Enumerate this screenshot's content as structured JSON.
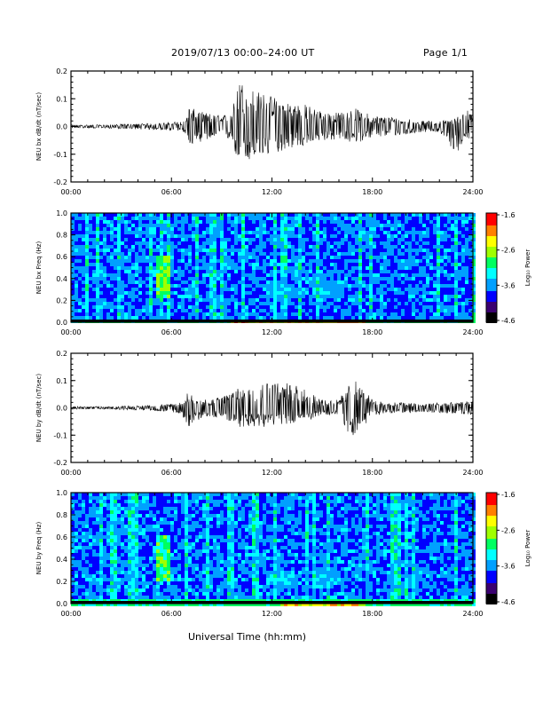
{
  "header": {
    "title": "2019/07/13  00:00–24:00 UT",
    "page": "Page 1/1"
  },
  "footer": {
    "xlabel": "Universal Time (hh:mm)"
  },
  "colors": {
    "trace": "#000000",
    "colormap": [
      "#000000",
      "#3a0070",
      "#0000ff",
      "#00a0ff",
      "#00ffff",
      "#00ff60",
      "#a0ff00",
      "#ffff00",
      "#ff8000",
      "#ff0000"
    ]
  },
  "chart_data": [
    {
      "type": "line",
      "ylabel": "NEU bx dB/dt (nT/sec)",
      "xlim": [
        0,
        24
      ],
      "ylim": [
        -0.2,
        0.2
      ],
      "xticks": [
        "00:00",
        "06:00",
        "12:00",
        "18:00",
        "24:00"
      ],
      "yticks": [
        "-0.2",
        "-0.1",
        "0.0",
        "0.1",
        "0.2"
      ],
      "envelope": {
        "x": [
          0,
          2,
          4,
          5.5,
          6.8,
          7,
          8,
          9,
          9.6,
          10,
          11,
          12,
          13,
          14,
          15,
          16,
          17,
          18,
          19,
          20,
          21,
          22,
          23,
          23.5,
          24
        ],
        "upper": [
          0.006,
          0.006,
          0.01,
          0.013,
          0.02,
          0.07,
          0.05,
          0.04,
          0.05,
          0.17,
          0.13,
          0.11,
          0.09,
          0.08,
          0.055,
          0.05,
          0.065,
          0.04,
          0.035,
          0.03,
          0.02,
          0.02,
          0.03,
          0.07,
          0.04
        ],
        "lower": [
          -0.006,
          -0.006,
          -0.01,
          -0.013,
          -0.02,
          -0.07,
          -0.05,
          -0.04,
          -0.05,
          -0.14,
          -0.12,
          -0.1,
          -0.08,
          -0.07,
          -0.05,
          -0.05,
          -0.06,
          -0.04,
          -0.035,
          -0.03,
          -0.02,
          -0.02,
          -0.1,
          -0.05,
          -0.04
        ]
      }
    },
    {
      "type": "heatmap",
      "ylabel": "NEU bx Freq (Hz)",
      "xlim": [
        0,
        24
      ],
      "ylim": [
        0,
        1.0
      ],
      "xticks": [
        "00:00",
        "06:00",
        "12:00",
        "18:00",
        "24:00"
      ],
      "yticks": [
        "0.0",
        "0.2",
        "0.4",
        "0.6",
        "0.8",
        "1.0"
      ],
      "colorbar": {
        "label": "Log₁₀ Power",
        "range": [
          -4.6,
          -1.6
        ],
        "ticks": [
          "-1.6",
          "-2.6",
          "-3.6",
          "-4.6"
        ]
      },
      "features": [
        {
          "t": [
            4.9,
            5.9
          ],
          "f": [
            0.22,
            0.62
          ],
          "level": -2.7
        },
        {
          "t": [
            11.5,
            12.7
          ],
          "f": [
            0.25,
            0.4
          ],
          "level": -3.3
        },
        {
          "t": [
            14.7,
            16.3
          ],
          "f": [
            0.25,
            0.4
          ],
          "level": -3.4
        },
        {
          "t": [
            9.5,
            17.5
          ],
          "f": [
            0.0,
            0.04
          ],
          "level": -2.0
        }
      ]
    },
    {
      "type": "line",
      "ylabel": "NEU by dB/dt (nT/sec)",
      "xlim": [
        0,
        24
      ],
      "ylim": [
        -0.2,
        0.2
      ],
      "xticks": [
        "00:00",
        "06:00",
        "12:00",
        "18:00",
        "24:00"
      ],
      "yticks": [
        "-0.2",
        "-0.1",
        "0.0",
        "0.1",
        "0.2"
      ],
      "envelope": {
        "x": [
          0,
          2,
          4,
          5.5,
          6.6,
          7,
          8,
          9,
          10,
          11,
          12,
          13,
          14,
          15,
          16,
          16.8,
          17.3,
          18,
          19,
          20,
          21,
          22,
          23,
          24
        ],
        "upper": [
          0.005,
          0.005,
          0.008,
          0.012,
          0.02,
          0.06,
          0.03,
          0.04,
          0.08,
          0.08,
          0.11,
          0.09,
          0.07,
          0.03,
          0.03,
          0.11,
          0.08,
          0.03,
          0.02,
          0.02,
          0.015,
          0.02,
          0.02,
          0.03
        ],
        "lower": [
          -0.005,
          -0.005,
          -0.008,
          -0.012,
          -0.02,
          -0.07,
          -0.03,
          -0.04,
          -0.07,
          -0.07,
          -0.07,
          -0.06,
          -0.05,
          -0.03,
          -0.03,
          -0.12,
          -0.08,
          -0.03,
          -0.02,
          -0.02,
          -0.015,
          -0.02,
          -0.02,
          -0.03
        ]
      }
    },
    {
      "type": "heatmap",
      "ylabel": "NEU by Freq (Hz)",
      "xlim": [
        0,
        24
      ],
      "ylim": [
        0,
        1.0
      ],
      "xticks": [
        "00:00",
        "06:00",
        "12:00",
        "18:00",
        "24:00"
      ],
      "yticks": [
        "0.0",
        "0.2",
        "0.4",
        "0.6",
        "0.8",
        "1.0"
      ],
      "colorbar": {
        "label": "Log₁₀ Power",
        "range": [
          -4.6,
          -1.6
        ],
        "ticks": [
          "-1.6",
          "-2.6",
          "-3.6",
          "-4.6"
        ]
      },
      "features": [
        {
          "t": [
            4.9,
            5.9
          ],
          "f": [
            0.22,
            0.62
          ],
          "level": -2.7
        },
        {
          "t": [
            11.6,
            13.2
          ],
          "f": [
            0.2,
            0.32
          ],
          "level": -3.3
        },
        {
          "t": [
            14.2,
            15.8
          ],
          "f": [
            0.2,
            0.33
          ],
          "level": -3.4
        },
        {
          "t": [
            12.5,
            17.5
          ],
          "f": [
            0.0,
            0.03
          ],
          "level": -2.1
        }
      ]
    }
  ]
}
